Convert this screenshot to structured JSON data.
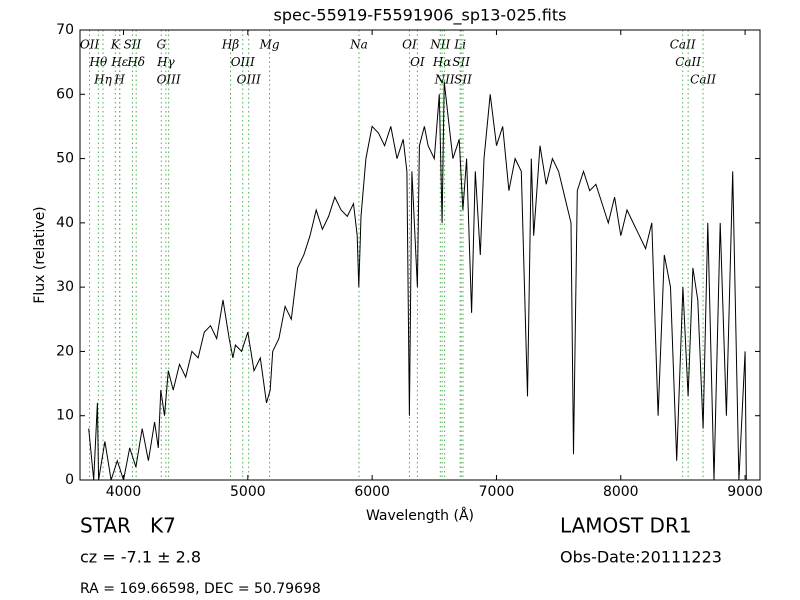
{
  "chart_data": {
    "type": "line",
    "title": "spec-55919-F5591906_sp13-025.fits",
    "xlabel": "Wavelength (Å)",
    "ylabel": "Flux (relative)",
    "xlim": [
      3650,
      9120
    ],
    "xticks": [
      4000,
      5000,
      6000,
      7000,
      8000,
      9000
    ],
    "ylim": [
      0,
      70
    ],
    "yticks": [
      0,
      10,
      20,
      30,
      40,
      50,
      60,
      70
    ],
    "color": "#000000",
    "line_color": "#4caf50",
    "x": [
      3720,
      3760,
      3790,
      3800,
      3850,
      3900,
      3950,
      4000,
      4050,
      4100,
      4150,
      4200,
      4250,
      4280,
      4300,
      4330,
      4360,
      4400,
      4450,
      4500,
      4550,
      4600,
      4650,
      4700,
      4750,
      4800,
      4850,
      4880,
      4900,
      4950,
      5000,
      5050,
      5100,
      5150,
      5180,
      5200,
      5250,
      5300,
      5350,
      5400,
      5450,
      5500,
      5550,
      5600,
      5650,
      5700,
      5750,
      5800,
      5850,
      5880,
      5893,
      5910,
      5950,
      6000,
      6050,
      6100,
      6150,
      6200,
      6250,
      6280,
      6300,
      6320,
      6364,
      6380,
      6420,
      6450,
      6500,
      6540,
      6563,
      6580,
      6620,
      6650,
      6700,
      6730,
      6760,
      6800,
      6830,
      6870,
      6900,
      6950,
      7000,
      7050,
      7100,
      7150,
      7200,
      7250,
      7280,
      7300,
      7350,
      7400,
      7450,
      7500,
      7550,
      7600,
      7620,
      7650,
      7700,
      7750,
      7800,
      7850,
      7900,
      7950,
      8000,
      8050,
      8100,
      8150,
      8200,
      8250,
      8300,
      8350,
      8400,
      8450,
      8500,
      8542,
      8580,
      8620,
      8662,
      8700,
      8750,
      8800,
      8850,
      8900,
      8950,
      9000,
      9010
    ],
    "values": [
      8,
      0,
      12,
      0,
      6,
      0,
      3,
      0,
      5,
      2,
      8,
      3,
      9,
      5,
      14,
      10,
      17,
      14,
      18,
      16,
      20,
      19,
      23,
      24,
      22,
      28,
      22,
      19,
      21,
      20,
      23,
      17,
      19,
      12,
      14,
      20,
      22,
      27,
      25,
      33,
      35,
      38,
      42,
      39,
      41,
      44,
      42,
      41,
      43,
      38,
      30,
      41,
      50,
      55,
      54,
      52,
      55,
      50,
      53,
      48,
      10,
      48,
      30,
      52,
      55,
      52,
      50,
      60,
      40,
      62,
      55,
      50,
      53,
      42,
      50,
      26,
      48,
      35,
      50,
      60,
      52,
      55,
      45,
      50,
      48,
      13,
      50,
      38,
      52,
      46,
      50,
      48,
      44,
      40,
      4,
      45,
      48,
      45,
      46,
      43,
      40,
      44,
      38,
      42,
      40,
      38,
      36,
      40,
      10,
      35,
      30,
      3,
      30,
      13,
      33,
      28,
      8,
      40,
      0,
      40,
      10,
      48,
      0,
      20,
      0
    ],
    "lines": [
      {
        "label": "OII",
        "wavelength": 3727
      },
      {
        "label": "Hθ",
        "wavelength": 3798
      },
      {
        "label": "Hη",
        "wavelength": 3835
      },
      {
        "label": "K",
        "wavelength": 3934
      },
      {
        "label": "Hε",
        "wavelength": 3970
      },
      {
        "label": "H",
        "wavelength": 3969
      },
      {
        "label": "SII",
        "wavelength": 4072
      },
      {
        "label": "Hδ",
        "wavelength": 4102
      },
      {
        "label": "G",
        "wavelength": 4304
      },
      {
        "label": "Hγ",
        "wavelength": 4341
      },
      {
        "label": "OIII",
        "wavelength": 4363
      },
      {
        "label": "Hβ",
        "wavelength": 4861
      },
      {
        "label": "OIII",
        "wavelength": 4959
      },
      {
        "label": "OIII",
        "wavelength": 5007
      },
      {
        "label": "Mg",
        "wavelength": 5175
      },
      {
        "label": "Na",
        "wavelength": 5894
      },
      {
        "label": "OI",
        "wavelength": 6300
      },
      {
        "label": "OI",
        "wavelength": 6364
      },
      {
        "label": "NII",
        "wavelength": 6548
      },
      {
        "label": "Hα",
        "wavelength": 6563
      },
      {
        "label": "NII",
        "wavelength": 6583
      },
      {
        "label": "Li",
        "wavelength": 6708
      },
      {
        "label": "SII",
        "wavelength": 6716
      },
      {
        "label": "SII",
        "wavelength": 6731
      },
      {
        "label": "CaII",
        "wavelength": 8498
      },
      {
        "label": "CaII",
        "wavelength": 8542
      },
      {
        "label": "CaII",
        "wavelength": 8662
      }
    ],
    "object": "STAR   K7",
    "redshift": "cz = -7.1 ± 2.8",
    "coords": "RA = 169.66598, DEC = 50.79698",
    "survey": "LAMOST DR1",
    "obs_date": "Obs-Date:20111223"
  }
}
